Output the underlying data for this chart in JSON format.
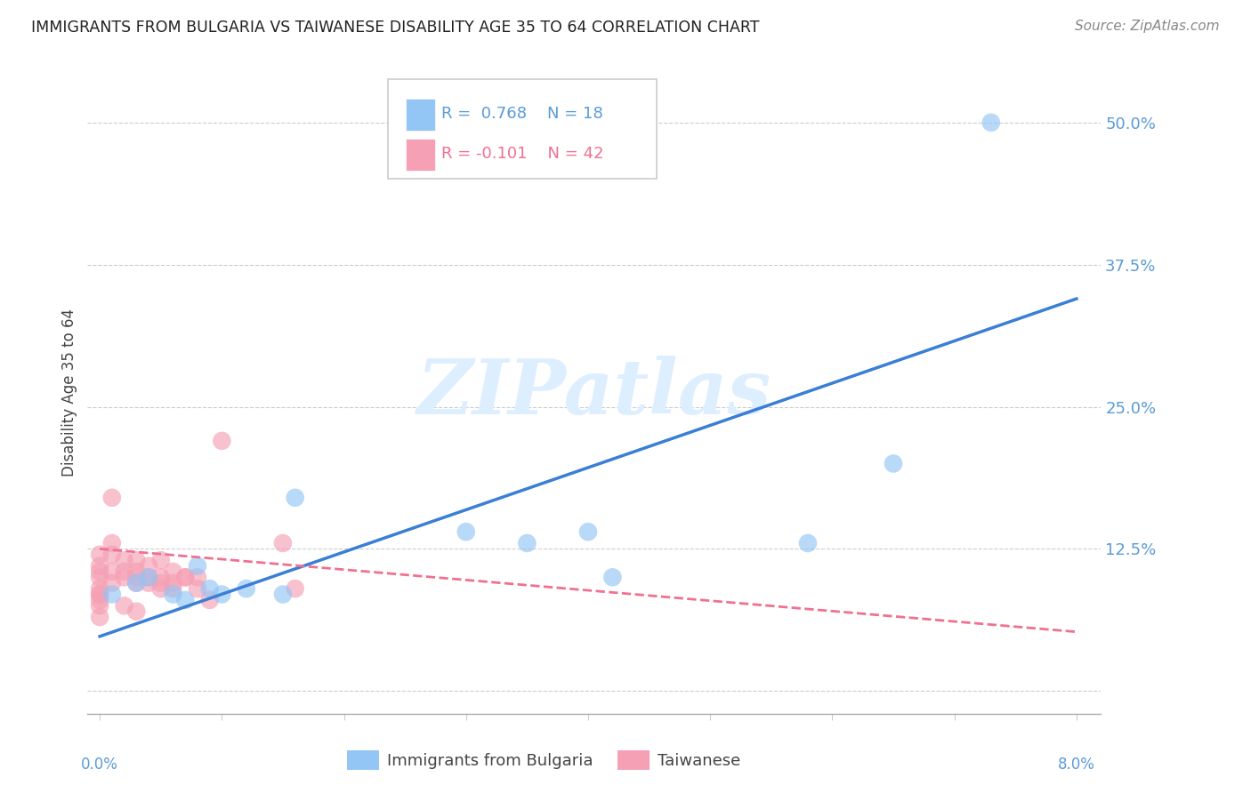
{
  "title": "IMMIGRANTS FROM BULGARIA VS TAIWANESE DISABILITY AGE 35 TO 64 CORRELATION CHART",
  "source": "Source: ZipAtlas.com",
  "ylabel": "Disability Age 35 to 64",
  "yticks": [
    0.0,
    0.125,
    0.25,
    0.375,
    0.5
  ],
  "ytick_labels": [
    "",
    "12.5%",
    "25.0%",
    "37.5%",
    "50.0%"
  ],
  "xlim": [
    -0.001,
    0.082
  ],
  "ylim": [
    -0.02,
    0.545
  ],
  "legend_r_bulgaria": "R =  0.768",
  "legend_n_bulgaria": "N = 18",
  "legend_r_taiwanese": "R = -0.101",
  "legend_n_taiwanese": "N = 42",
  "color_bulgaria": "#93c5f5",
  "color_taiwanese": "#f5a0b5",
  "color_blue_line": "#3a7fd5",
  "color_pink_line": "#f07090",
  "color_axis_labels": "#5b9bd5",
  "watermark_color": "#ddeeff",
  "bulgaria_points_x": [
    0.001,
    0.003,
    0.004,
    0.006,
    0.007,
    0.008,
    0.009,
    0.01,
    0.012,
    0.015,
    0.016,
    0.03,
    0.035,
    0.04,
    0.042,
    0.058,
    0.065,
    0.073
  ],
  "bulgaria_points_y": [
    0.085,
    0.095,
    0.1,
    0.085,
    0.08,
    0.11,
    0.09,
    0.085,
    0.09,
    0.085,
    0.17,
    0.14,
    0.13,
    0.14,
    0.1,
    0.13,
    0.2,
    0.5
  ],
  "taiwanese_points_x": [
    0.0,
    0.0,
    0.0,
    0.0,
    0.0,
    0.0,
    0.0,
    0.0,
    0.0,
    0.0,
    0.001,
    0.001,
    0.001,
    0.001,
    0.001,
    0.002,
    0.002,
    0.002,
    0.002,
    0.003,
    0.003,
    0.003,
    0.003,
    0.003,
    0.004,
    0.004,
    0.004,
    0.005,
    0.005,
    0.005,
    0.005,
    0.006,
    0.006,
    0.006,
    0.007,
    0.007,
    0.008,
    0.008,
    0.009,
    0.01,
    0.015,
    0.016
  ],
  "taiwanese_points_y": [
    0.12,
    0.11,
    0.105,
    0.1,
    0.09,
    0.085,
    0.085,
    0.08,
    0.075,
    0.065,
    0.17,
    0.13,
    0.12,
    0.105,
    0.095,
    0.115,
    0.105,
    0.1,
    0.075,
    0.115,
    0.105,
    0.1,
    0.095,
    0.07,
    0.11,
    0.1,
    0.095,
    0.115,
    0.1,
    0.095,
    0.09,
    0.105,
    0.095,
    0.09,
    0.1,
    0.1,
    0.1,
    0.09,
    0.08,
    0.22,
    0.13,
    0.09
  ],
  "blue_line_x": [
    0.0,
    0.08
  ],
  "blue_line_y": [
    0.048,
    0.345
  ],
  "pink_line_x": [
    0.0,
    0.08
  ],
  "pink_line_y": [
    0.125,
    0.052
  ]
}
